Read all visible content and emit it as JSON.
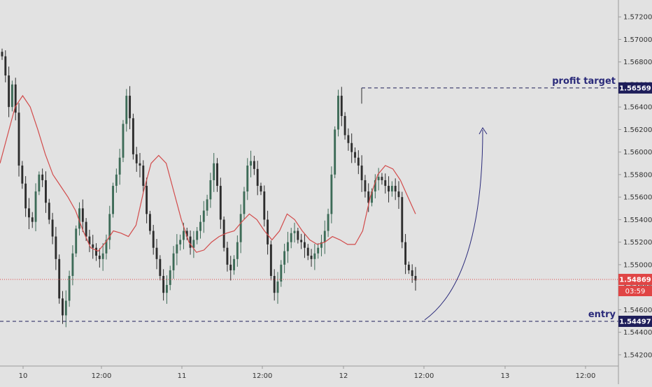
{
  "colors": {
    "background": "#e2e2e2",
    "axis_line": "#9a9a9a",
    "text": "#333333",
    "candle_up": "#3d6b57",
    "candle_down": "#2d2d2d",
    "ma_line": "#d24b4b",
    "current_price_line": "#e04545",
    "current_price_tag": "#e04545",
    "annotation": "#2a2a7a",
    "level_tag": "#1e1e5a"
  },
  "chart_data": {
    "type": "candlestick",
    "x_ticks": [
      "10",
      "12:00",
      "11",
      "12:00",
      "12",
      "12:00",
      "13",
      "12:00"
    ],
    "y_ticks": [
      "1.57200",
      "1.57000",
      "1.56800",
      "1.56600",
      "1.56400",
      "1.56200",
      "1.56000",
      "1.55800",
      "1.55600",
      "1.55400",
      "1.55200",
      "1.55000",
      "1.54800",
      "1.54600",
      "1.54400",
      "1.54200"
    ],
    "ylim": [
      1.541,
      1.5735
    ],
    "close_path": [
      1.5685,
      1.5668,
      1.564,
      1.566,
      1.5635,
      1.5588,
      1.5572,
      1.555,
      1.5542,
      1.5538,
      1.5565,
      1.558,
      1.5575,
      1.5555,
      1.554,
      1.5525,
      1.5505,
      1.547,
      1.5455,
      1.5468,
      1.549,
      1.551,
      1.5532,
      1.555,
      1.5538,
      1.5525,
      1.5518,
      1.5515,
      1.5508,
      1.5505,
      1.551,
      1.5522,
      1.5545,
      1.557,
      1.558,
      1.5595,
      1.5625,
      1.565,
      1.563,
      1.5598,
      1.559,
      1.5588,
      1.557,
      1.5545,
      1.553,
      1.5515,
      1.5505,
      1.549,
      1.5475,
      1.5482,
      1.5495,
      1.551,
      1.5518,
      1.5522,
      1.553,
      1.5525,
      1.5515,
      1.5522,
      1.553,
      1.5538,
      1.5548,
      1.5558,
      1.5575,
      1.559,
      1.557,
      1.554,
      1.5515,
      1.55,
      1.5495,
      1.5505,
      1.552,
      1.5545,
      1.5565,
      1.5588,
      1.5592,
      1.5585,
      1.557,
      1.5565,
      1.554,
      1.5518,
      1.549,
      1.5475,
      1.5485,
      1.55,
      1.5512,
      1.552,
      1.5528,
      1.553,
      1.5522,
      1.552,
      1.5515,
      1.5508,
      1.5505,
      1.551,
      1.5515,
      1.552,
      1.553,
      1.5545,
      1.558,
      1.562,
      1.565,
      1.5632,
      1.5615,
      1.5608,
      1.56,
      1.5595,
      1.5588,
      1.5575,
      1.5565,
      1.5555,
      1.5565,
      1.5575,
      1.5578,
      1.5575,
      1.557,
      1.5565,
      1.557,
      1.5565,
      1.556,
      1.552,
      1.55,
      1.5495,
      1.549,
      1.5486
    ],
    "moving_average": [
      1.559,
      1.5615,
      1.564,
      1.565,
      1.564,
      1.562,
      1.5598,
      1.558,
      1.557,
      1.556,
      1.5548,
      1.553,
      1.5515,
      1.5512,
      1.552,
      1.553,
      1.5528,
      1.5525,
      1.5535,
      1.5565,
      1.559,
      1.5597,
      1.559,
      1.5565,
      1.554,
      1.552,
      1.5511,
      1.5513,
      1.552,
      1.5525,
      1.5528,
      1.553,
      1.5538,
      1.5545,
      1.554,
      1.553,
      1.5522,
      1.553,
      1.5545,
      1.554,
      1.553,
      1.5522,
      1.5518,
      1.552,
      1.5525,
      1.5522,
      1.5518,
      1.5518,
      1.553,
      1.556,
      1.558,
      1.5588,
      1.5585,
      1.5575,
      1.556,
      1.5545
    ],
    "current_price": 1.54869,
    "countdown": "03:59",
    "levels": [
      {
        "label": "profit target",
        "value": 1.56569,
        "tag": "1.56569"
      },
      {
        "label": "entry",
        "value": 1.54497,
        "tag": "1.54497"
      }
    ],
    "current_price_tag": "1.54869"
  }
}
